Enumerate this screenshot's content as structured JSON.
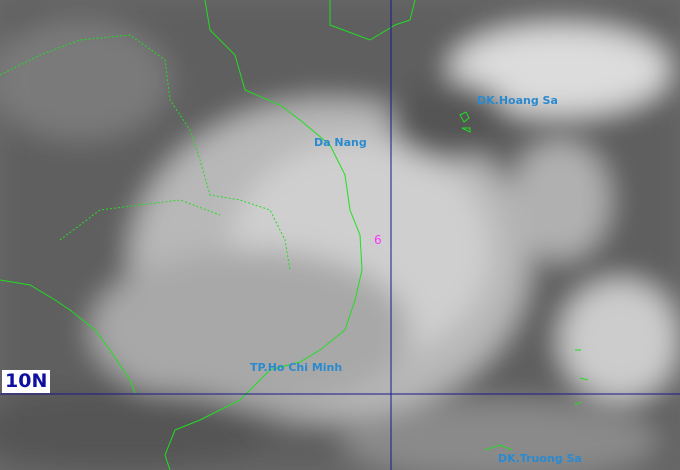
{
  "map": {
    "type": "infrared satellite image",
    "latitude_label": "10N",
    "places": [
      {
        "name": "Da Nang"
      },
      {
        "name": "DK.Hoang Sa"
      },
      {
        "name": "TP.Ho Chi Minh"
      },
      {
        "name": "DK.Truong Sa"
      }
    ],
    "storm_symbol": "typhoon-icon",
    "colors": {
      "coastline": "#22dd22",
      "grid": "#1a1a8a",
      "labels": "#2a8ad0",
      "storm": "#ff33ff"
    }
  }
}
